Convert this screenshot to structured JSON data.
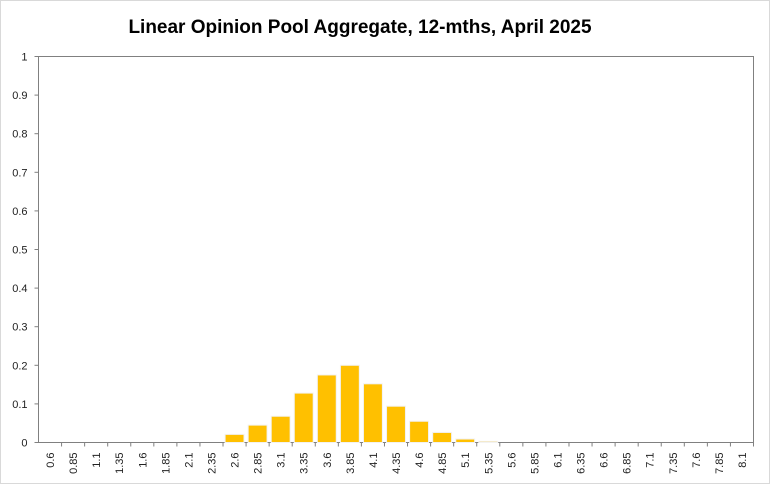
{
  "chart_data": {
    "type": "bar",
    "title": "Linear Opinion Pool Aggregate, 12-mths, April 2025",
    "xlabel": "",
    "ylabel": "",
    "ylim": [
      0,
      1
    ],
    "yticks": [
      "0",
      "0.1",
      "0.2",
      "0.3",
      "0.4",
      "0.5",
      "0.6",
      "0.7",
      "0.8",
      "0.9",
      "1"
    ],
    "categories": [
      "0.6",
      "0.85",
      "1.1",
      "1.35",
      "1.6",
      "1.85",
      "2.1",
      "2.35",
      "2.6",
      "2.85",
      "3.1",
      "3.35",
      "3.6",
      "3.85",
      "4.1",
      "4.35",
      "4.6",
      "4.85",
      "5.1",
      "5.35",
      "5.6",
      "5.85",
      "6.1",
      "6.35",
      "6.6",
      "6.85",
      "7.1",
      "7.35",
      "7.6",
      "7.85",
      "8.1"
    ],
    "values": [
      0,
      0,
      0,
      0,
      0,
      0,
      0,
      0,
      0.021,
      0.045,
      0.068,
      0.128,
      0.175,
      0.2,
      0.152,
      0.094,
      0.055,
      0.026,
      0.009,
      0.003,
      0,
      0,
      0,
      0,
      0,
      0,
      0,
      0,
      0,
      0,
      0
    ],
    "bar_color": "#FFC000",
    "grid": false,
    "legend": "none"
  }
}
